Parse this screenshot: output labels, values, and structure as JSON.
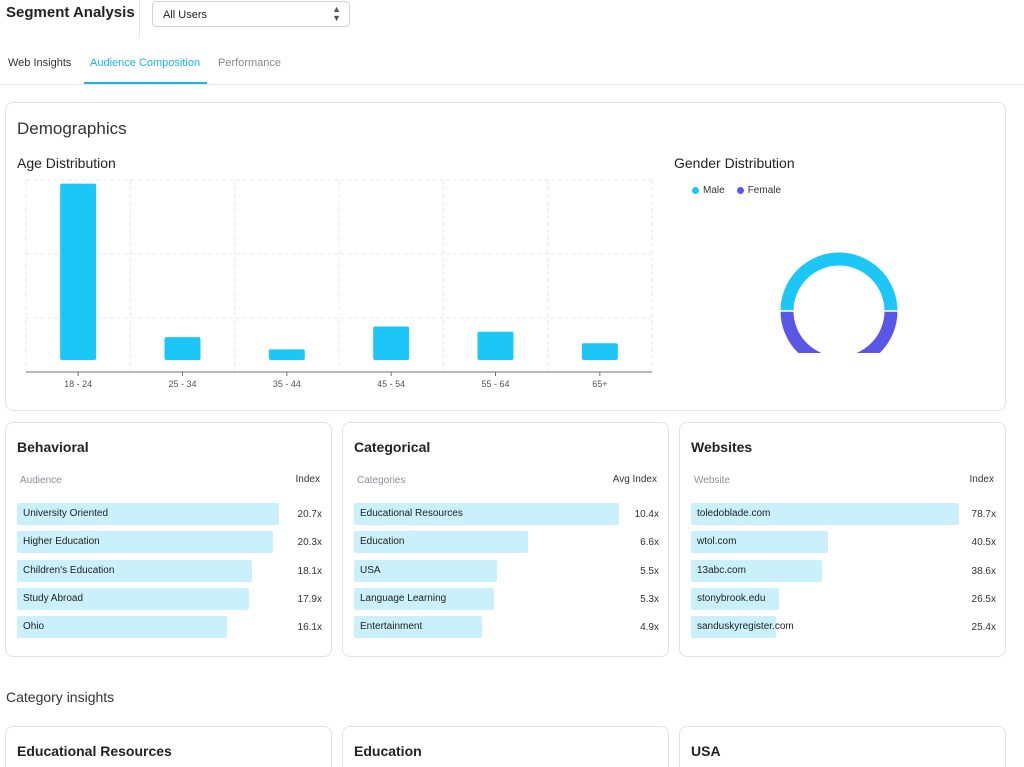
{
  "header": {
    "title": "Segment Analysis",
    "segment_select": {
      "value": "All Users"
    }
  },
  "tabs": [
    {
      "label": "Web Insights",
      "active": false
    },
    {
      "label": "Audience Composition",
      "active": true
    },
    {
      "label": "Performance",
      "active": false
    }
  ],
  "demographics": {
    "title": "Demographics",
    "age": {
      "title": "Age Distribution"
    },
    "gender": {
      "title": "Gender Distribution",
      "legend": [
        "Male",
        "Female"
      ]
    }
  },
  "colors": {
    "accent": "#1bb3e6",
    "male": "#1cc6f6",
    "female": "#5a57e6",
    "bar_fill": "#c9f0fb"
  },
  "chart_data": [
    {
      "type": "bar",
      "title": "Age Distribution",
      "categories": [
        "18 - 24",
        "25 - 34",
        "35 - 44",
        "45 - 54",
        "55 - 64",
        "65+"
      ],
      "values": [
        100,
        13,
        6,
        19,
        16,
        9.5
      ],
      "ylim": [
        0,
        110
      ],
      "grid": true
    },
    {
      "type": "pie",
      "title": "Gender Distribution",
      "labels": [
        "Male",
        "Female"
      ],
      "values": [
        50,
        50
      ],
      "legend": "top-left"
    }
  ],
  "behavioral": {
    "title": "Behavioral",
    "col_left": "Audience",
    "col_right": "Index",
    "rows": [
      {
        "label": "University Oriented",
        "value": "20.7x",
        "fraction": 0.86
      },
      {
        "label": "Higher Education",
        "value": "20.3x",
        "fraction": 0.84
      },
      {
        "label": "Children's Education",
        "value": "18.1x",
        "fraction": 0.77
      },
      {
        "label": "Study Abroad",
        "value": "17.9x",
        "fraction": 0.76
      },
      {
        "label": "Ohio",
        "value": "16.1x",
        "fraction": 0.69
      }
    ]
  },
  "categorical": {
    "title": "Categorical",
    "col_left": "Categories",
    "col_right": "Avg Index",
    "rows": [
      {
        "label": "Educational Resources",
        "value": "10.4x",
        "fraction": 0.87
      },
      {
        "label": "Education",
        "value": "6.6x",
        "fraction": 0.57
      },
      {
        "label": "USA",
        "value": "5.5x",
        "fraction": 0.47
      },
      {
        "label": "Language Learning",
        "value": "5.3x",
        "fraction": 0.46
      },
      {
        "label": "Entertainment",
        "value": "4.9x",
        "fraction": 0.42
      }
    ]
  },
  "websites": {
    "title": "Websites",
    "col_left": "Website",
    "col_right": "Index",
    "rows": [
      {
        "label": "toledoblade.com",
        "value": "78.7x",
        "fraction": 0.88
      },
      {
        "label": "wtol.com",
        "value": "40.5x",
        "fraction": 0.45
      },
      {
        "label": "13abc.com",
        "value": "38.6x",
        "fraction": 0.43
      },
      {
        "label": "stonybrook.edu",
        "value": "26.5x",
        "fraction": 0.29
      },
      {
        "label": "sanduskyregister.com",
        "value": "25.4x",
        "fraction": 0.28
      }
    ]
  },
  "category_insights": {
    "title": "Category insights",
    "cards": [
      "Educational Resources",
      "Education",
      "USA"
    ]
  }
}
